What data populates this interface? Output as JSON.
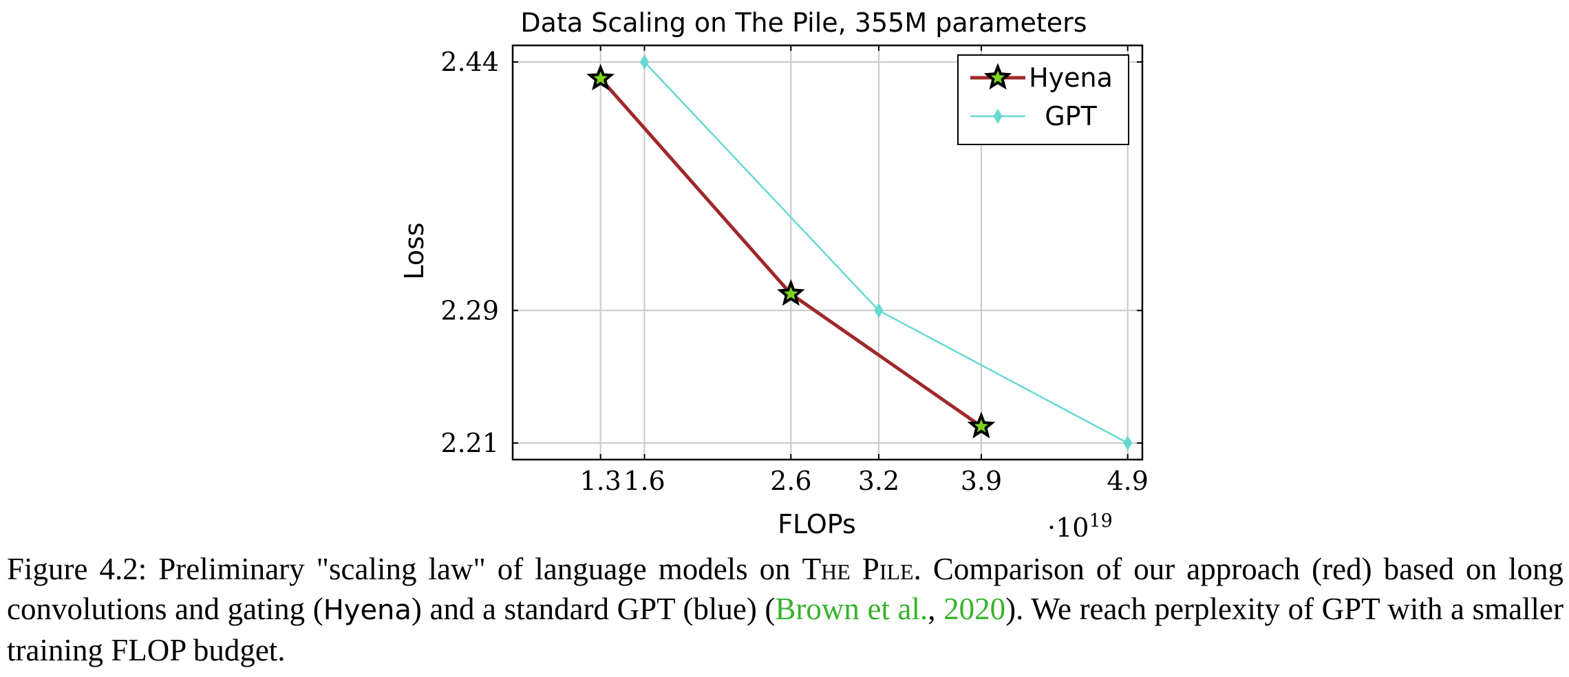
{
  "chart_data": {
    "type": "line",
    "title": "Data Scaling on The Pile, 355M parameters",
    "xlabel": "FLOPs",
    "ylabel": "Loss",
    "x_multiplier": "·10",
    "x_multiplier_exp": "19",
    "xlim": [
      0.7,
      5.0
    ],
    "ylim": [
      2.2,
      2.45
    ],
    "grid": true,
    "legend_position": "top-right",
    "x_ticks": [
      1.3,
      1.6,
      2.6,
      3.2,
      3.9,
      4.9
    ],
    "x_tick_labels": [
      "1.3",
      "1.6",
      "2.6",
      "3.2",
      "3.9",
      "4.9"
    ],
    "y_ticks": [
      2.21,
      2.29,
      2.44
    ],
    "y_tick_labels": [
      "2.21",
      "2.29",
      "2.44"
    ],
    "series": [
      {
        "name": "Hyena",
        "color": "#a0282a",
        "marker": "star",
        "marker_fill": "#7ed321",
        "x": [
          1.3,
          2.6,
          3.9
        ],
        "y": [
          2.43,
          2.3,
          2.22
        ]
      },
      {
        "name": "GPT",
        "color": "#66d9d0",
        "marker": "diamond",
        "x": [
          1.6,
          3.2,
          4.9
        ],
        "y": [
          2.44,
          2.29,
          2.21
        ]
      }
    ]
  },
  "caption": {
    "prefix": "Figure 4.2: Preliminary \"scaling law\" of language models on ",
    "dataset": "The Pile",
    "mid1": ". Comparison of our approach (red) based on long convolutions and gating (",
    "model": "Hyena",
    "mid2": ") and a standard GPT (blue) (",
    "cite_author": "Brown et al.",
    "cite_sep": ", ",
    "cite_year": "2020",
    "suffix": "). We reach perplexity of GPT with a smaller training FLOP budget."
  }
}
